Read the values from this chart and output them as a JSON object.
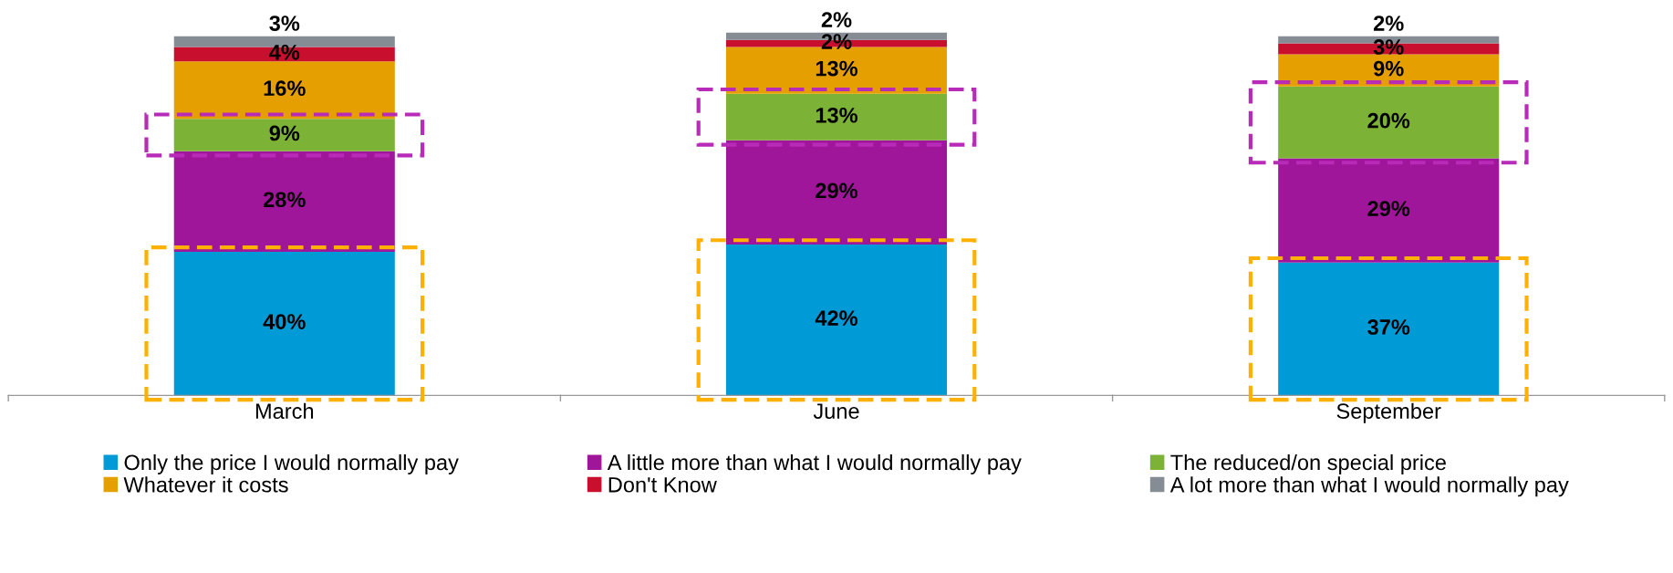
{
  "chart_data": {
    "type": "bar",
    "stacked": true,
    "categories": [
      "March",
      "June",
      "September"
    ],
    "series": [
      {
        "name": "Only the price I would normally pay",
        "color": "#009ad6",
        "values": [
          40,
          42,
          37
        ],
        "value_labels": [
          "40%",
          "42%",
          "37%"
        ]
      },
      {
        "name": "A little more than what I would normally pay",
        "color": "#a0169a",
        "values": [
          28,
          29,
          29
        ],
        "value_labels": [
          "28%",
          "29%",
          "29%"
        ]
      },
      {
        "name": "The reduced/on special price",
        "color": "#7cb236",
        "values": [
          9,
          13,
          20
        ],
        "value_labels": [
          "9%",
          "13%",
          "20%"
        ]
      },
      {
        "name": "Whatever it costs",
        "color": "#e69f00",
        "values": [
          16,
          13,
          9
        ],
        "value_labels": [
          "16%",
          "13%",
          "9%"
        ]
      },
      {
        "name": "Don't Know",
        "color": "#c8102e",
        "values": [
          4,
          2,
          3
        ],
        "value_labels": [
          "4%",
          "2%",
          "3%"
        ]
      },
      {
        "name": "A lot more than what I would normally pay",
        "color": "#858c94",
        "values": [
          3,
          2,
          2
        ],
        "value_labels": [
          "3%",
          "2%",
          "2%"
        ]
      }
    ],
    "legend": "bottom",
    "grid": false
  }
}
